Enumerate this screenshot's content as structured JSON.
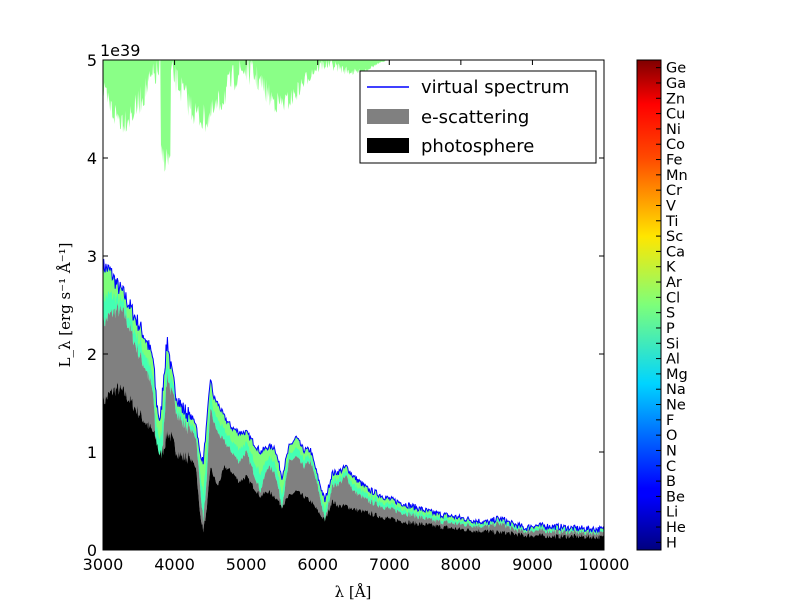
{
  "chart_data": {
    "type": "area",
    "title": "",
    "xlabel": "λ [Å]",
    "ylabel": "L_λ [erg s⁻¹ Å⁻¹]",
    "y_offset_label": "1e39",
    "x_ticks": [
      "3000",
      "4000",
      "5000",
      "6000",
      "7000",
      "8000",
      "9000",
      "10000"
    ],
    "y_ticks": [
      "0",
      "1",
      "2",
      "3",
      "4",
      "5"
    ],
    "xlim": [
      3000,
      10000
    ],
    "ylim": [
      0,
      5
    ],
    "y_scale_factor": 1e+39,
    "grid": false,
    "legend_position": "top-right",
    "legend": [
      {
        "label": "virtual spectrum",
        "color": "#0000ff",
        "kind": "line"
      },
      {
        "label": "e-scattering",
        "color": "#808080",
        "kind": "patch"
      },
      {
        "label": "photosphere",
        "color": "#000000",
        "kind": "patch"
      }
    ],
    "x": [
      3000,
      3100,
      3200,
      3300,
      3400,
      3500,
      3600,
      3700,
      3750,
      3800,
      3850,
      3900,
      3950,
      4000,
      4100,
      4200,
      4300,
      4350,
      4400,
      4450,
      4500,
      4550,
      4600,
      4700,
      4800,
      4900,
      5000,
      5100,
      5200,
      5300,
      5400,
      5500,
      5600,
      5700,
      5800,
      5900,
      6000,
      6100,
      6200,
      6300,
      6400,
      6500,
      6700,
      7000,
      7300,
      7600,
      7900,
      8200,
      8400,
      8500,
      8600,
      8700,
      8800,
      8900,
      9000,
      9300,
      9600,
      10000
    ],
    "series": [
      {
        "name": "photosphere",
        "color": "#000000",
        "values": [
          1.5,
          1.6,
          1.65,
          1.6,
          1.5,
          1.4,
          1.3,
          1.2,
          1.1,
          0.95,
          1.05,
          1.2,
          1.15,
          1.05,
          0.95,
          0.95,
          0.85,
          0.4,
          0.2,
          0.4,
          0.85,
          0.75,
          0.65,
          0.85,
          0.8,
          0.7,
          0.75,
          0.65,
          0.55,
          0.6,
          0.55,
          0.45,
          0.55,
          0.6,
          0.55,
          0.5,
          0.4,
          0.3,
          0.5,
          0.45,
          0.45,
          0.42,
          0.38,
          0.32,
          0.28,
          0.25,
          0.22,
          0.2,
          0.19,
          0.18,
          0.18,
          0.17,
          0.16,
          0.15,
          0.15,
          0.14,
          0.14,
          0.13
        ]
      },
      {
        "name": "e-scattering",
        "color": "#808080",
        "values": [
          2.3,
          2.4,
          2.45,
          2.4,
          2.2,
          2.0,
          1.85,
          1.6,
          0.9,
          0.5,
          1.3,
          1.8,
          1.6,
          1.5,
          1.3,
          1.25,
          1.15,
          0.7,
          0.3,
          0.7,
          1.45,
          1.3,
          1.2,
          1.1,
          1.0,
          0.9,
          1.0,
          0.8,
          0.6,
          0.85,
          0.8,
          0.45,
          0.9,
          0.95,
          0.85,
          0.9,
          0.65,
          0.3,
          0.65,
          0.68,
          0.75,
          0.6,
          0.5,
          0.42,
          0.36,
          0.3,
          0.27,
          0.25,
          0.24,
          0.27,
          0.26,
          0.22,
          0.2,
          0.19,
          0.2,
          0.19,
          0.18,
          0.17
        ]
      },
      {
        "name": "virtual spectrum",
        "color": "#0000ff",
        "values": [
          2.9,
          2.85,
          2.7,
          2.6,
          2.45,
          2.3,
          2.15,
          1.95,
          1.5,
          1.3,
          1.8,
          2.15,
          1.85,
          1.65,
          1.45,
          1.38,
          1.3,
          1.0,
          0.9,
          1.3,
          1.75,
          1.55,
          1.5,
          1.35,
          1.25,
          1.2,
          1.2,
          1.1,
          1.0,
          1.05,
          1.05,
          0.75,
          1.05,
          1.15,
          1.02,
          1.02,
          0.75,
          0.5,
          0.78,
          0.8,
          0.85,
          0.75,
          0.62,
          0.52,
          0.45,
          0.38,
          0.34,
          0.3,
          0.28,
          0.32,
          0.31,
          0.27,
          0.25,
          0.22,
          0.25,
          0.24,
          0.22,
          0.21
        ]
      }
    ],
    "colorbar": {
      "labels": [
        "H",
        "He",
        "Li",
        "Be",
        "B",
        "C",
        "N",
        "O",
        "F",
        "Ne",
        "Na",
        "Mg",
        "Al",
        "Si",
        "P",
        "S",
        "Cl",
        "Ar",
        "K",
        "Ca",
        "Sc",
        "Ti",
        "V",
        "Cr",
        "Mn",
        "Fe",
        "Co",
        "Ni",
        "Cu",
        "Zn",
        "Ga",
        "Ge"
      ],
      "colormap": "jet"
    }
  }
}
